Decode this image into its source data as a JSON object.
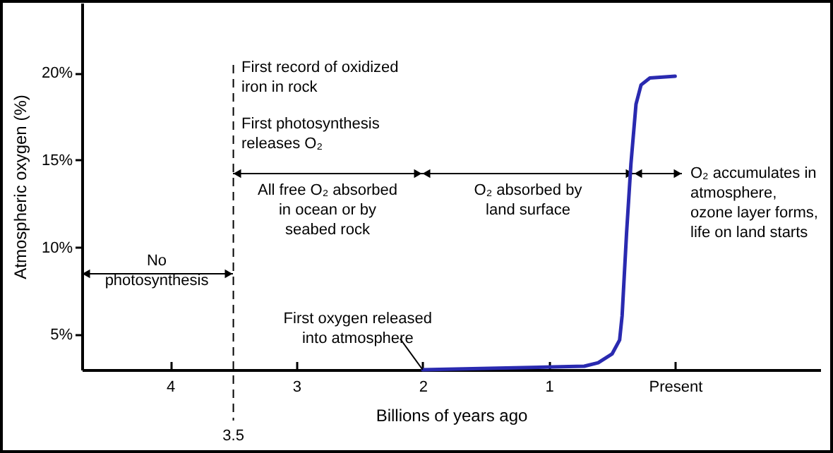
{
  "chart_data": {
    "type": "line",
    "xlabel": "Billions of years ago",
    "ylabel": "Atmospheric oxygen (%)",
    "x": [
      2,
      0.72,
      0.61,
      0.5,
      0.44,
      0.42,
      0.385,
      0.35,
      0.31,
      0.27,
      0.2,
      0
    ],
    "series": [
      {
        "color": "#2a2ab0",
        "values": [
          3,
          3.2,
          3.4,
          3.9,
          4.7,
          6.1,
          10.8,
          14.8,
          18.2,
          19.3,
          19.7,
          19.8
        ]
      }
    ],
    "xlim": [
      4.7,
      -1.15
    ],
    "xticks": [
      4,
      3,
      2,
      1,
      {
        "value": 0,
        "label": "Present"
      }
    ],
    "ylim": [
      3,
      24
    ],
    "yticks": [
      {
        "value": 5,
        "label": "5%"
      },
      {
        "value": 10,
        "label": "10%"
      },
      {
        "value": 15,
        "label": "15%"
      },
      {
        "value": 20,
        "label": "20%"
      }
    ],
    "grid": false,
    "marker": "none",
    "line_style": "solid",
    "ref_lines": [
      {
        "axis": "x",
        "value": 3.5,
        "label": "3.5",
        "line_style": "dashed"
      }
    ],
    "annotations": [
      "First record of oxidized\niron in rock",
      "First photosynthesis\nreleases O₂",
      "No\nphotosynthesis",
      "All free O₂ absorbed\nin ocean or by\nseabed rock",
      "O₂ absorbed by\nland surface",
      "O₂ accumulates in\natmosphere,\nozone layer forms,\nlife on land starts",
      {
        "text": "First oxygen released\ninto atmosphere",
        "x": 2,
        "y": 3
      }
    ]
  }
}
